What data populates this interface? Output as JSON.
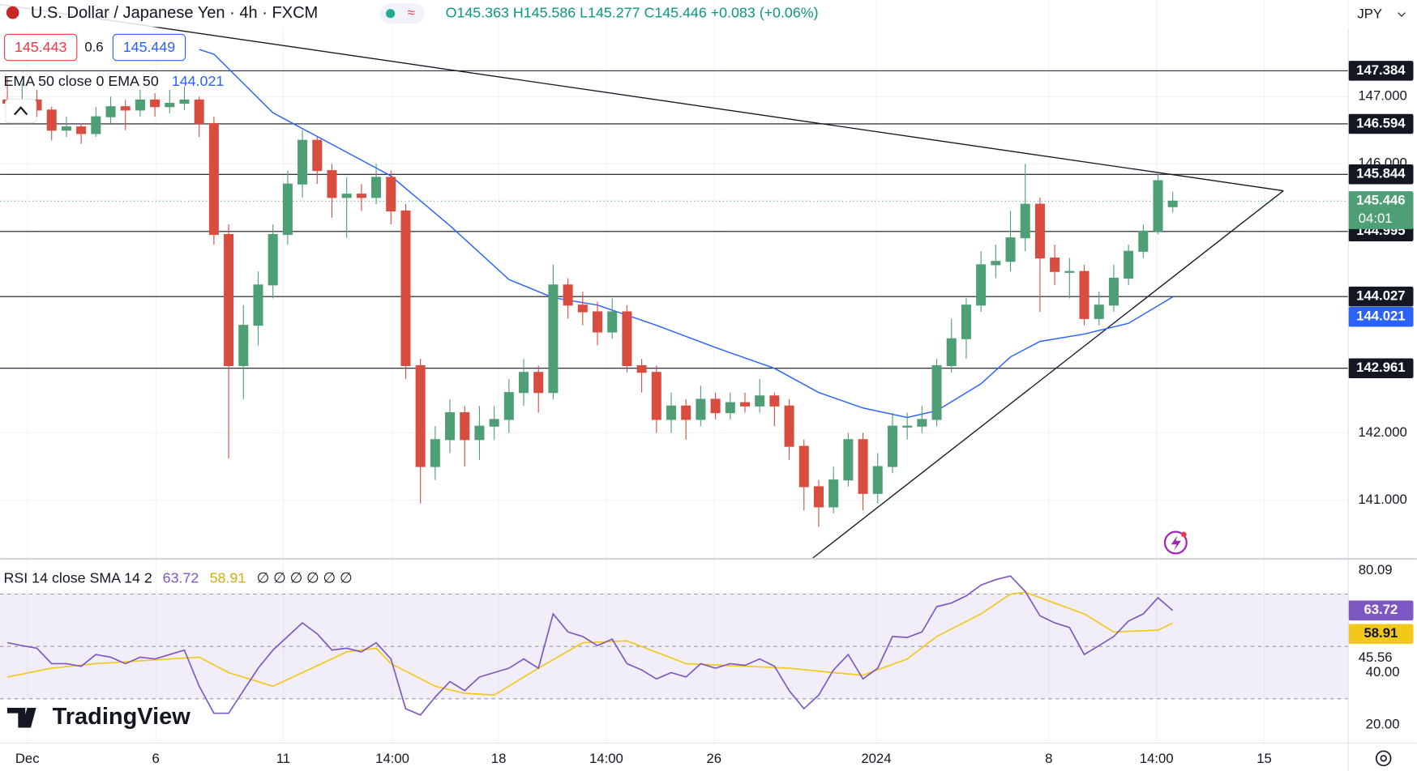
{
  "header": {
    "title": "U.S. Dollar / Japanese Yen · 4h · FXCM",
    "ohlc": "O145.363 H145.586 L145.277 C145.446 +0.083 (+0.06%)",
    "bid": "145.443",
    "spread": "0.6",
    "ask": "145.449",
    "currency": "JPY",
    "ema_legend": "EMA 50 close 0 EMA 50",
    "rsi_legend": "RSI 14 close SMA 14 2",
    "rsi_extra": "∅ ∅ ∅ ∅ ∅ ∅",
    "logo": "TradingView"
  },
  "chart_data": {
    "type": "candlestick",
    "up_color": "#4e9f76",
    "down_color": "#d94d40",
    "xlim": [
      -0.5,
      90.9
    ],
    "ylim": [
      140.141,
      148.436
    ],
    "xticks": [
      {
        "value": 1.35,
        "label": "Dec"
      },
      {
        "value": 10.06,
        "label": "6"
      },
      {
        "value": 18.7,
        "label": "11"
      },
      {
        "value": 26.1,
        "label": "14:00"
      },
      {
        "value": 33.3,
        "label": "18"
      },
      {
        "value": 40.6,
        "label": "14:00"
      },
      {
        "value": 47.9,
        "label": "26"
      },
      {
        "value": 58.9,
        "label": "2024"
      },
      {
        "value": 70.6,
        "label": "8"
      },
      {
        "value": 77.9,
        "label": "14:00"
      },
      {
        "value": 85.2,
        "label": "15"
      }
    ],
    "yticks": [
      {
        "value": 147,
        "label": "147.000"
      },
      {
        "value": 146,
        "label": "146.000"
      },
      {
        "value": 142,
        "label": "142.000"
      },
      {
        "value": 141,
        "label": "141.000"
      }
    ],
    "candles": [
      [
        146.95,
        147.3,
        146.8,
        146.9
      ],
      [
        146.9,
        147.2,
        146.8,
        146.95
      ],
      [
        146.95,
        147.1,
        146.7,
        146.8
      ],
      [
        146.8,
        146.85,
        146.35,
        146.5
      ],
      [
        146.5,
        146.7,
        146.4,
        146.55
      ],
      [
        146.55,
        146.6,
        146.3,
        146.45
      ],
      [
        146.45,
        146.85,
        146.4,
        146.7
      ],
      [
        146.7,
        147.0,
        146.6,
        146.85
      ],
      [
        146.85,
        146.95,
        146.5,
        146.8
      ],
      [
        146.8,
        147.1,
        146.7,
        146.95
      ],
      [
        146.95,
        147.05,
        146.7,
        146.85
      ],
      [
        146.85,
        147.1,
        146.75,
        146.9
      ],
      [
        146.9,
        147.15,
        146.8,
        146.95
      ],
      [
        146.95,
        147.0,
        146.4,
        146.6
      ],
      [
        146.6,
        146.7,
        144.8,
        144.95
      ],
      [
        144.95,
        145.1,
        141.62,
        143.0
      ],
      [
        143.0,
        143.9,
        142.5,
        143.6
      ],
      [
        143.6,
        144.4,
        143.3,
        144.2
      ],
      [
        144.2,
        145.1,
        144.0,
        144.95
      ],
      [
        144.95,
        145.9,
        144.8,
        145.7
      ],
      [
        145.7,
        146.5,
        145.5,
        146.35
      ],
      [
        146.35,
        146.4,
        145.7,
        145.9
      ],
      [
        145.9,
        146.0,
        145.2,
        145.5
      ],
      [
        145.5,
        145.8,
        144.9,
        145.55
      ],
      [
        145.55,
        145.7,
        145.3,
        145.5
      ],
      [
        145.5,
        146.0,
        145.4,
        145.8
      ],
      [
        145.8,
        145.9,
        145.1,
        145.3
      ],
      [
        145.3,
        145.4,
        142.8,
        143.0
      ],
      [
        143.0,
        143.1,
        140.95,
        141.5
      ],
      [
        141.5,
        142.1,
        141.3,
        141.9
      ],
      [
        141.9,
        142.5,
        141.7,
        142.3
      ],
      [
        142.3,
        142.4,
        141.5,
        141.9
      ],
      [
        141.9,
        142.4,
        141.6,
        142.1
      ],
      [
        142.1,
        142.4,
        141.9,
        142.2
      ],
      [
        142.2,
        142.8,
        142.0,
        142.6
      ],
      [
        142.6,
        143.1,
        142.4,
        142.9
      ],
      [
        142.9,
        143.0,
        142.3,
        142.6
      ],
      [
        142.6,
        144.5,
        142.5,
        144.2
      ],
      [
        144.2,
        144.3,
        143.7,
        143.9
      ],
      [
        143.9,
        144.1,
        143.6,
        143.8
      ],
      [
        143.8,
        143.95,
        143.3,
        143.5
      ],
      [
        143.5,
        144.0,
        143.4,
        143.8
      ],
      [
        143.8,
        143.9,
        142.9,
        143.0
      ],
      [
        143.0,
        143.1,
        142.6,
        142.9
      ],
      [
        142.9,
        143.0,
        142.0,
        142.2
      ],
      [
        142.2,
        142.6,
        142.0,
        142.4
      ],
      [
        142.4,
        142.5,
        141.9,
        142.2
      ],
      [
        142.2,
        142.7,
        142.1,
        142.5
      ],
      [
        142.5,
        142.6,
        142.2,
        142.3
      ],
      [
        142.3,
        142.6,
        142.2,
        142.45
      ],
      [
        142.45,
        142.6,
        142.3,
        142.4
      ],
      [
        142.4,
        142.8,
        142.3,
        142.55
      ],
      [
        142.55,
        142.6,
        142.1,
        142.4
      ],
      [
        142.4,
        142.5,
        141.6,
        141.8
      ],
      [
        141.8,
        141.9,
        140.85,
        141.2
      ],
      [
        141.2,
        141.3,
        140.6,
        140.9
      ],
      [
        140.9,
        141.5,
        140.8,
        141.3
      ],
      [
        141.3,
        142.0,
        141.2,
        141.9
      ],
      [
        141.9,
        142.0,
        140.85,
        141.1
      ],
      [
        141.1,
        141.7,
        140.95,
        141.5
      ],
      [
        141.5,
        142.3,
        141.4,
        142.1
      ],
      [
        142.1,
        142.3,
        141.9,
        142.1
      ],
      [
        142.1,
        142.4,
        142.0,
        142.2
      ],
      [
        142.2,
        143.1,
        142.1,
        143.0
      ],
      [
        143.0,
        143.7,
        142.9,
        143.4
      ],
      [
        143.4,
        144.0,
        143.1,
        143.9
      ],
      [
        143.9,
        144.7,
        143.8,
        144.5
      ],
      [
        144.5,
        144.8,
        144.3,
        144.55
      ],
      [
        144.55,
        145.3,
        144.4,
        144.9
      ],
      [
        144.9,
        146.0,
        144.7,
        145.4
      ],
      [
        145.4,
        145.5,
        143.8,
        144.6
      ],
      [
        144.6,
        144.8,
        144.2,
        144.4
      ],
      [
        144.4,
        144.6,
        144.0,
        144.4
      ],
      [
        144.4,
        144.5,
        143.6,
        143.7
      ],
      [
        143.7,
        144.1,
        143.6,
        143.9
      ],
      [
        143.9,
        144.5,
        143.8,
        144.3
      ],
      [
        144.3,
        144.8,
        144.2,
        144.7
      ],
      [
        144.7,
        145.1,
        144.6,
        145.0
      ],
      [
        145.0,
        145.85,
        144.95,
        145.75
      ],
      [
        145.363,
        145.586,
        145.277,
        145.446
      ]
    ],
    "last_price": {
      "value": 145.446,
      "countdown": "04:01",
      "color": "#4e9f76"
    },
    "levels": [
      147.384,
      146.594,
      145.844,
      144.995,
      144.027,
      142.961
    ],
    "trendlines": [
      {
        "x": [
          -0.5,
          86.5
        ],
        "values": [
          148.37,
          145.6
        ]
      },
      {
        "x": [
          54.6,
          86.5
        ],
        "values": [
          140.14,
          145.6
        ]
      }
    ],
    "ema": {
      "color": "#2962ff",
      "x": [
        13,
        14,
        18,
        22,
        26,
        30,
        34,
        37,
        40,
        44,
        48,
        52,
        55,
        58,
        61,
        63,
        66,
        68,
        70,
        73,
        76,
        79
      ],
      "values": [
        147.7,
        147.63,
        146.76,
        146.29,
        145.82,
        145.08,
        144.28,
        144.01,
        143.9,
        143.6,
        143.27,
        142.96,
        142.6,
        142.37,
        142.23,
        142.33,
        142.73,
        143.13,
        143.36,
        143.47,
        143.63,
        144.021
      ]
    },
    "rsi": {
      "color": "#7e57c2",
      "ylim": [
        13.45,
        83.1
      ],
      "yticks": [
        {
          "value": 20,
          "label": "20.00"
        },
        {
          "value": 40,
          "label": "40.00"
        }
      ],
      "bands": [
        30,
        50,
        70
      ],
      "marks": [
        80.09,
        45.56
      ],
      "values": [
        51.4,
        50.3,
        49.3,
        43.4,
        43.4,
        42.4,
        46.9,
        45.9,
        43.4,
        45.9,
        45.2,
        46.9,
        48.6,
        34.8,
        24.5,
        24.5,
        33.1,
        41.7,
        48.6,
        53.8,
        59.0,
        54.8,
        48.6,
        49.3,
        47.9,
        51.4,
        45.2,
        26.2,
        23.8,
        30.7,
        36.6,
        33.1,
        38.3,
        40.0,
        41.7,
        45.2,
        41.7,
        62.4,
        55.5,
        53.8,
        50.3,
        52.8,
        43.4,
        41.0,
        37.6,
        40.0,
        38.3,
        43.4,
        41.7,
        43.4,
        42.8,
        45.2,
        42.4,
        33.1,
        26.2,
        31.4,
        41.0,
        46.9,
        37.6,
        41.7,
        53.8,
        53.4,
        55.5,
        65.2,
        66.6,
        69.3,
        73.4,
        75.5,
        76.9,
        71.0,
        61.7,
        59.0,
        57.2,
        46.9,
        50.3,
        53.8,
        59.7,
        62.4,
        68.6,
        63.72
      ]
    },
    "rsi_sma": {
      "color": "#f2c81b",
      "x": [
        0,
        3,
        6,
        11,
        13,
        15,
        18,
        20,
        23,
        25,
        26,
        29,
        31,
        33,
        36,
        39,
        42,
        46,
        50,
        53,
        56,
        58,
        61,
        63,
        66,
        68,
        69,
        73,
        75,
        78,
        79
      ],
      "values": [
        38.3,
        41.7,
        43.4,
        45.2,
        45.9,
        40.0,
        34.8,
        40.0,
        47.9,
        49.3,
        43.4,
        34.8,
        32.1,
        31.4,
        41.7,
        51.4,
        52.1,
        43.4,
        42.4,
        41.7,
        40.0,
        39.0,
        45.2,
        53.8,
        62.4,
        70.0,
        70.7,
        62.4,
        55.5,
        56.2,
        58.91
      ]
    }
  }
}
